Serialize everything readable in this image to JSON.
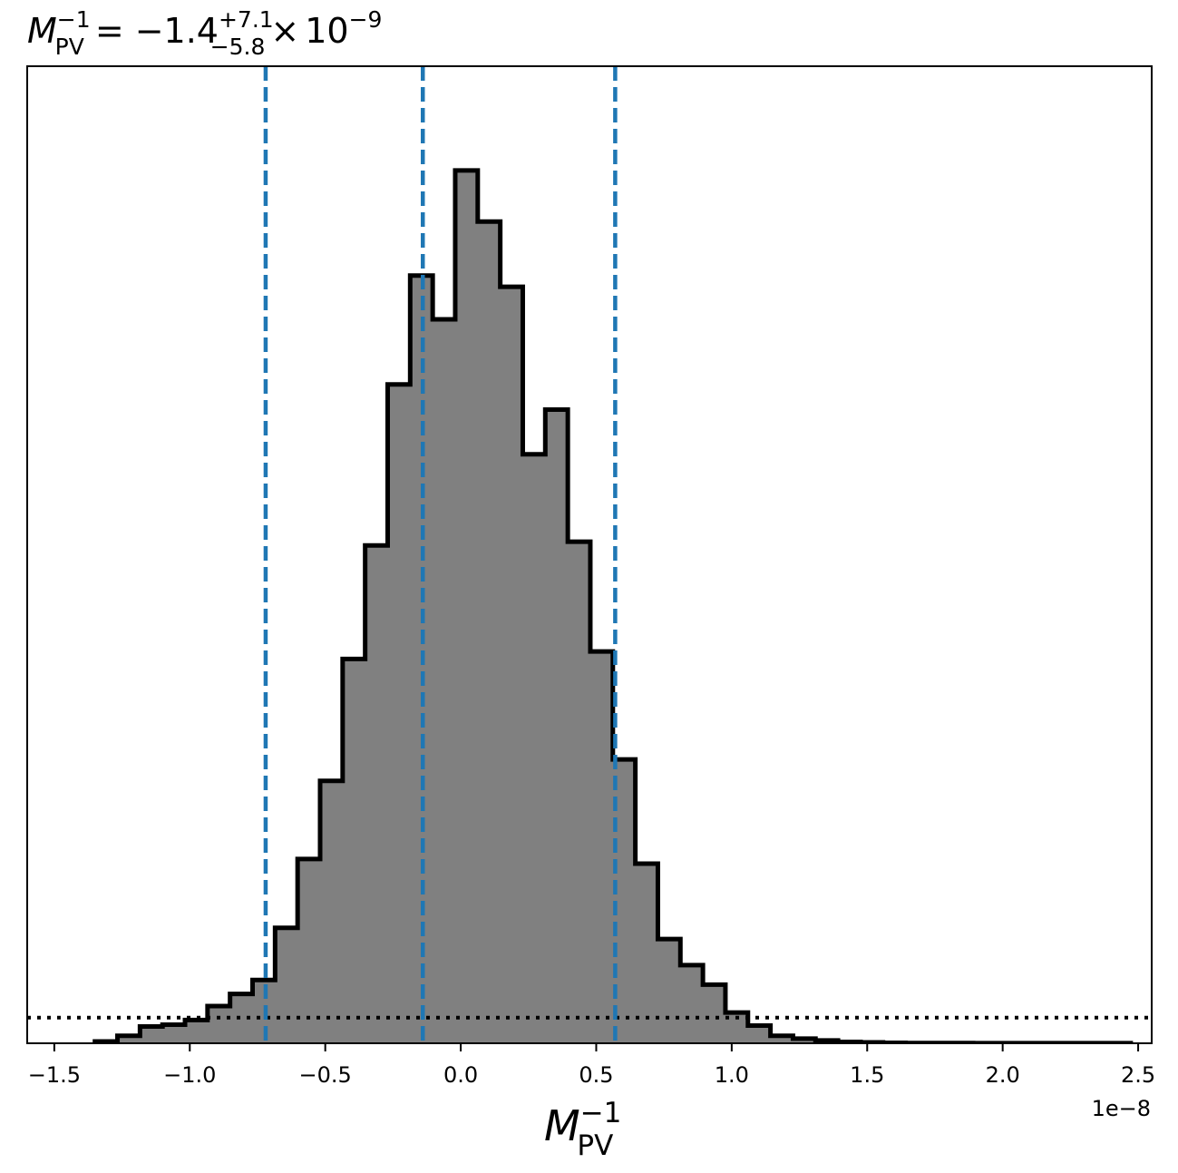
{
  "chart_data": {
    "type": "histogram",
    "title": {
      "symbol": "M",
      "symbol_sub": "PV",
      "symbol_sup": "−1",
      "equals": "=",
      "value": "−1.4",
      "upper": "+7.1",
      "lower": "−5.8",
      "times": "×",
      "base": "10",
      "exponent": "−9"
    },
    "xlabel": {
      "symbol": "M",
      "sub": "PV",
      "sup": "−1"
    },
    "x_offset_label": "1e−8",
    "xlim": [
      -1.6,
      2.55
    ],
    "ylim": [
      0,
      1.05
    ],
    "ticks": [
      {
        "value": -1.5,
        "label": "−1.5"
      },
      {
        "value": -1.0,
        "label": "−1.0"
      },
      {
        "value": -0.5,
        "label": "−0.5"
      },
      {
        "value": 0.0,
        "label": "0.0"
      },
      {
        "value": 0.5,
        "label": "0.5"
      },
      {
        "value": 1.0,
        "label": "1.0"
      },
      {
        "value": 1.5,
        "label": "1.5"
      },
      {
        "value": 2.0,
        "label": "2.0"
      },
      {
        "value": 2.5,
        "label": "2.5"
      }
    ],
    "bin_width": 0.0831,
    "bin_start": -1.35,
    "counts": [
      0.002,
      0.008,
      0.018,
      0.02,
      0.025,
      0.04,
      0.053,
      0.068,
      0.124,
      0.198,
      0.282,
      0.413,
      0.535,
      0.708,
      0.825,
      0.778,
      0.938,
      0.883,
      0.813,
      0.633,
      0.681,
      0.539,
      0.421,
      0.305,
      0.193,
      0.112,
      0.084,
      0.063,
      0.033,
      0.019,
      0.008,
      0.005,
      0.003,
      0.0015,
      0.001,
      0.0005,
      0.0003,
      0.0002,
      0.0002,
      0.0001,
      0.0001,
      0.0001,
      0.0001,
      0.0001,
      0.0001,
      0.0001
    ],
    "quantile_lines": [
      -0.72,
      -0.14,
      0.57
    ],
    "threshold_line": 0.0275,
    "colors": {
      "fill": "#808080",
      "edge": "#000000",
      "quantile": "#1f77b4",
      "threshold": "#000000"
    },
    "grid": false
  }
}
